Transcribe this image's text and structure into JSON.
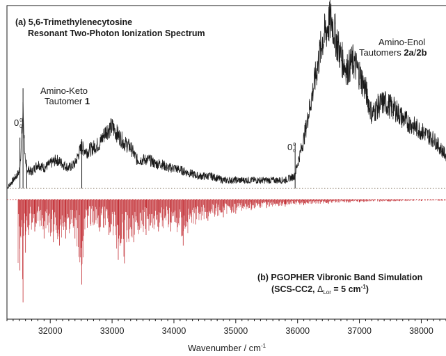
{
  "chart_data": {
    "type": "line",
    "xlabel": "Wavenumber / cm",
    "xlabel_sup": "-1",
    "xlim": [
      31300,
      38400
    ],
    "x_ticks": [
      32000,
      33000,
      34000,
      35000,
      36000,
      37000,
      38000
    ],
    "x_tick_labels": [
      "32000",
      "33000",
      "34000",
      "35000",
      "36000",
      "37000",
      "38000"
    ],
    "grid": false,
    "panel_a": {
      "title_line1": "(a) 5,6-Trimethylenecytosine",
      "title_line2": "Resonant Two-Photon Ionization Spectrum",
      "color": "#1a1a1a",
      "baseline_style": "dotted",
      "series": [
        {
          "x": [
            31300,
            31400,
            31500,
            31530,
            31560,
            31600,
            31700,
            31800,
            31900,
            32000,
            32100,
            32200,
            32300,
            32400,
            32500,
            32600,
            32700,
            32800,
            32900,
            33000,
            33100,
            33200,
            33300,
            33400,
            33500,
            33600,
            33700,
            33800,
            33900,
            34000,
            34200,
            34400,
            34600,
            34800,
            35000,
            35200,
            35400,
            35600,
            35800,
            35950,
            36000,
            36100,
            36200,
            36300,
            36400,
            36500,
            36550,
            36600,
            36700,
            36800,
            36900,
            37000,
            37100,
            37200,
            37300,
            37400,
            37500,
            37600,
            37700,
            37800,
            37900,
            38000,
            38100,
            38200,
            38300,
            38400
          ],
          "y": [
            0.0,
            0.1,
            0.2,
            0.5,
            0.95,
            0.25,
            0.2,
            0.3,
            0.25,
            0.3,
            0.35,
            0.3,
            0.25,
            0.3,
            0.5,
            0.45,
            0.5,
            0.55,
            0.7,
            0.75,
            0.65,
            0.55,
            0.5,
            0.35,
            0.35,
            0.35,
            0.3,
            0.3,
            0.25,
            0.25,
            0.2,
            0.15,
            0.15,
            0.1,
            0.1,
            0.1,
            0.1,
            0.1,
            0.1,
            0.15,
            0.3,
            0.6,
            1.0,
            1.4,
            1.8,
            2.0,
            2.05,
            1.9,
            1.6,
            1.45,
            1.55,
            1.4,
            1.2,
            0.9,
            1.0,
            1.05,
            1.0,
            0.95,
            0.85,
            0.8,
            0.75,
            0.7,
            0.65,
            0.6,
            0.5,
            0.4
          ]
        }
      ],
      "annotations": [
        {
          "text": "Amino-Keto",
          "sub": "Tautomer",
          "bold": "1"
        },
        {
          "text": "Amino-Enol",
          "sub": "Tautomers",
          "bold_a": "2a",
          "sep": "/",
          "bold_b": "2b"
        },
        {
          "text": "0"
        },
        {
          "text": "0"
        }
      ],
      "origin_sup": "0",
      "origin_sub": "0"
    },
    "panel_b": {
      "title_line1": "(b) PGOPHER Vibronic Band Simulation",
      "title_line2_pre": "(SCS-CC2, ",
      "title_delta": "Δ",
      "title_sub": "Lor",
      "title_mid": " = 5 cm",
      "title_sup": "-1",
      "title_end": ")",
      "color": "#c0272d",
      "baseline_style": "dotted",
      "lines": [
        {
          "x": 31510,
          "y": 1.0
        },
        {
          "x": 31560,
          "y": 1.45
        },
        {
          "x": 31600,
          "y": 0.75
        },
        {
          "x": 31650,
          "y": 0.5
        },
        {
          "x": 31750,
          "y": 0.45
        },
        {
          "x": 31900,
          "y": 0.55
        },
        {
          "x": 32050,
          "y": 0.6
        },
        {
          "x": 32150,
          "y": 0.65
        },
        {
          "x": 32250,
          "y": 0.55
        },
        {
          "x": 32400,
          "y": 0.55
        },
        {
          "x": 32510,
          "y": 1.2
        },
        {
          "x": 32600,
          "y": 0.4
        },
        {
          "x": 32800,
          "y": 0.45
        },
        {
          "x": 32950,
          "y": 0.5
        },
        {
          "x": 33100,
          "y": 0.85
        },
        {
          "x": 33200,
          "y": 0.9
        },
        {
          "x": 33350,
          "y": 0.6
        },
        {
          "x": 33550,
          "y": 0.5
        },
        {
          "x": 33750,
          "y": 0.45
        },
        {
          "x": 33950,
          "y": 0.45
        },
        {
          "x": 34150,
          "y": 0.65
        },
        {
          "x": 34350,
          "y": 0.35
        },
        {
          "x": 34550,
          "y": 0.3
        },
        {
          "x": 34800,
          "y": 0.25
        },
        {
          "x": 35000,
          "y": 0.2
        },
        {
          "x": 35250,
          "y": 0.15
        },
        {
          "x": 35500,
          "y": 0.12
        },
        {
          "x": 35800,
          "y": 0.1
        },
        {
          "x": 36100,
          "y": 0.08
        },
        {
          "x": 36500,
          "y": 0.06
        },
        {
          "x": 37000,
          "y": 0.04
        },
        {
          "x": 37500,
          "y": 0.03
        },
        {
          "x": 38000,
          "y": 0.02
        }
      ]
    }
  }
}
